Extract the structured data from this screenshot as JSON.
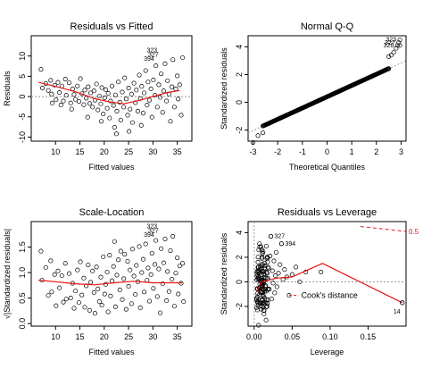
{
  "chart_data": [
    {
      "type": "scatter",
      "title": "Residuals vs Fitted",
      "xlabel": "Fitted values",
      "ylabel": "Residuals",
      "xlim": [
        5,
        38
      ],
      "ylim": [
        -11,
        15
      ],
      "xticks": [
        10,
        15,
        20,
        25,
        30,
        35
      ],
      "yticks": [
        -10,
        -5,
        0,
        5,
        10
      ],
      "smoother": {
        "x": [
          6.5,
          10,
          14,
          18,
          21,
          24,
          27,
          30,
          33,
          35.5
        ],
        "y": [
          3.5,
          2.5,
          1.2,
          -0.5,
          -1.3,
          -1.8,
          -1.0,
          0.0,
          1.0,
          1.5
        ]
      },
      "reference_line": 0,
      "labeled_points": [
        {
          "label": "323",
          "x": 31.6,
          "y": 11.4
        },
        {
          "label": "327",
          "x": 31.9,
          "y": 10.3
        },
        {
          "label": "394",
          "x": 31.0,
          "y": 9.3
        }
      ],
      "points": [
        [
          7,
          6.7
        ],
        [
          7.3,
          2.1
        ],
        [
          8,
          3.2
        ],
        [
          8.5,
          1.5
        ],
        [
          9,
          4.0
        ],
        [
          9.2,
          0.6
        ],
        [
          9.8,
          2.8
        ],
        [
          10.1,
          -0.8
        ],
        [
          10.5,
          3.5
        ],
        [
          10.8,
          1.0
        ],
        [
          11.3,
          2.6
        ],
        [
          11.6,
          -1.1
        ],
        [
          12,
          4.3
        ],
        [
          12.2,
          0.3
        ],
        [
          12.8,
          3.4
        ],
        [
          13.1,
          -1.6
        ],
        [
          13.5,
          1.9
        ],
        [
          13.8,
          0.5
        ],
        [
          14.1,
          -0.7
        ],
        [
          14.5,
          2.6
        ],
        [
          14.8,
          -1.2
        ],
        [
          15.1,
          4.4
        ],
        [
          15.4,
          0.7
        ],
        [
          15.8,
          -2.0
        ],
        [
          16,
          1.6
        ],
        [
          16.3,
          -0.4
        ],
        [
          16.7,
          2.4
        ],
        [
          17,
          -1.7
        ],
        [
          17.2,
          0.9
        ],
        [
          17.6,
          -2.6
        ],
        [
          17.9,
          1.4
        ],
        [
          18.1,
          -0.9
        ],
        [
          18.4,
          3.1
        ],
        [
          18.7,
          -3.3
        ],
        [
          19,
          0.1
        ],
        [
          19.3,
          -1.8
        ],
        [
          19.5,
          2.2
        ],
        [
          19.8,
          -4.3
        ],
        [
          20.1,
          -0.3
        ],
        [
          20.3,
          1.7
        ],
        [
          20.6,
          -2.9
        ],
        [
          20.8,
          0.8
        ],
        [
          21.1,
          -5.3
        ],
        [
          21.3,
          -1.1
        ],
        [
          21.6,
          2.6
        ],
        [
          21.9,
          -2.2
        ],
        [
          22.1,
          -7.6
        ],
        [
          22.3,
          0.4
        ],
        [
          22.6,
          -3.6
        ],
        [
          22.9,
          3.6
        ],
        [
          23.2,
          -1.4
        ],
        [
          23.4,
          -5.8
        ],
        [
          23.7,
          1.1
        ],
        [
          24,
          -2.6
        ],
        [
          24.2,
          4.6
        ],
        [
          24.5,
          -0.6
        ],
        [
          24.8,
          -4.6
        ],
        [
          25,
          2.1
        ],
        [
          25.3,
          -3.1
        ],
        [
          25.6,
          0.6
        ],
        [
          25.8,
          -6.4
        ],
        [
          26.1,
          3.3
        ],
        [
          26.4,
          -1.5
        ],
        [
          26.6,
          1.6
        ],
        [
          26.9,
          -3.6
        ],
        [
          27.2,
          5.3
        ],
        [
          27.4,
          -0.5
        ],
        [
          27.7,
          2.5
        ],
        [
          28,
          -4.1
        ],
        [
          28.2,
          0.9
        ],
        [
          28.5,
          6.4
        ],
        [
          28.8,
          -2.1
        ],
        [
          29,
          3.6
        ],
        [
          29.3,
          -0.9
        ],
        [
          29.6,
          1.9
        ],
        [
          29.8,
          -5.1
        ],
        [
          30.1,
          4.1
        ],
        [
          30.4,
          0.3
        ],
        [
          30.6,
          7.6
        ],
        [
          30.9,
          -2.6
        ],
        [
          31.2,
          2.9
        ],
        [
          31.5,
          -0.2
        ],
        [
          31.7,
          5.6
        ],
        [
          32,
          -3.9
        ],
        [
          32.2,
          1.4
        ],
        [
          32.5,
          8.1
        ],
        [
          32.8,
          -1.1
        ],
        [
          33,
          3.9
        ],
        [
          33.3,
          0.6
        ],
        [
          33.6,
          -6.1
        ],
        [
          33.9,
          2.4
        ],
        [
          34.1,
          9.1
        ],
        [
          34.4,
          -2.6
        ],
        [
          34.7,
          1.9
        ],
        [
          35,
          5.1
        ],
        [
          35.2,
          -0.6
        ],
        [
          35.5,
          2.9
        ],
        [
          35.8,
          -4.6
        ],
        [
          36.1,
          9.6
        ],
        [
          22.5,
          -9.2
        ],
        [
          25.1,
          -8.6
        ],
        [
          27.6,
          -7.1
        ],
        [
          19.4,
          -6.1
        ],
        [
          16.6,
          -5.1
        ],
        [
          13.3,
          -3.1
        ],
        [
          11.1,
          -2.1
        ],
        [
          9.3,
          -1.6
        ]
      ]
    },
    {
      "type": "scatter",
      "title": "Normal Q-Q",
      "xlabel": "Theoretical Quantiles",
      "ylabel": "Standardized residuals",
      "xlim": [
        -3.2,
        3.2
      ],
      "ylim": [
        -2.8,
        4.8
      ],
      "xticks": [
        -3,
        -2,
        -1,
        0,
        1,
        2,
        3
      ],
      "yticks": [
        -2,
        0,
        2,
        4
      ],
      "reference_line": {
        "x": [
          -3.2,
          3.2
        ],
        "y": [
          -2.2,
          3.0
        ]
      },
      "labeled_points": [
        {
          "label": "323",
          "x": 2.95,
          "y": 4.5
        },
        {
          "label": "327",
          "x": 2.9,
          "y": 4.3
        },
        {
          "label": "326",
          "x": 2.85,
          "y": 4.1
        }
      ],
      "qq_tail_points": [
        [
          -3.0,
          -2.9
        ],
        [
          -2.8,
          -2.4
        ],
        [
          -2.6,
          -2.2
        ],
        [
          2.5,
          3.3
        ],
        [
          2.6,
          3.4
        ],
        [
          2.7,
          3.6
        ],
        [
          2.8,
          3.9
        ],
        [
          2.95,
          4.1
        ]
      ]
    },
    {
      "type": "scatter",
      "title": "Scale-Location",
      "xlabel": "Fitted values",
      "ylabel": "√|Standardized residuals|",
      "xlim": [
        5,
        38
      ],
      "ylim": [
        -0.05,
        2.0
      ],
      "xticks": [
        10,
        15,
        20,
        25,
        30,
        35
      ],
      "yticks": [
        0.0,
        0.5,
        1.0,
        1.5
      ],
      "smoother": {
        "x": [
          6.5,
          10,
          14,
          18,
          22,
          26,
          30,
          34,
          36
        ],
        "y": [
          0.85,
          0.82,
          0.78,
          0.76,
          0.8,
          0.83,
          0.8,
          0.8,
          0.8
        ]
      },
      "labeled_points": [
        {
          "label": "323",
          "x": 31.6,
          "y": 1.9
        },
        {
          "label": "327",
          "x": 31.9,
          "y": 1.82
        },
        {
          "label": "394",
          "x": 31.0,
          "y": 1.74
        }
      ],
      "points": [
        [
          7,
          1.42
        ],
        [
          7.2,
          0.85
        ],
        [
          8,
          1.1
        ],
        [
          8.5,
          0.55
        ],
        [
          9,
          1.23
        ],
        [
          9.2,
          0.62
        ],
        [
          9.8,
          0.96
        ],
        [
          10.1,
          0.35
        ],
        [
          10.5,
          1.03
        ],
        [
          10.8,
          0.7
        ],
        [
          11.3,
          0.94
        ],
        [
          11.6,
          0.42
        ],
        [
          12,
          1.18
        ],
        [
          12.2,
          0.48
        ],
        [
          12.8,
          0.98
        ],
        [
          13.1,
          0.5
        ],
        [
          13.5,
          0.79
        ],
        [
          13.8,
          0.3
        ],
        [
          14.1,
          0.64
        ],
        [
          14.5,
          1.05
        ],
        [
          14.8,
          0.41
        ],
        [
          15.1,
          1.21
        ],
        [
          15.4,
          0.56
        ],
        [
          15.8,
          0.89
        ],
        [
          16,
          0.32
        ],
        [
          16.3,
          0.74
        ],
        [
          16.7,
          1.15
        ],
        [
          17,
          0.26
        ],
        [
          17.2,
          0.81
        ],
        [
          17.6,
          1.03
        ],
        [
          17.9,
          0.61
        ],
        [
          18.1,
          0.2
        ],
        [
          18.4,
          1.11
        ],
        [
          18.7,
          0.68
        ],
        [
          19,
          0.43
        ],
        [
          19.3,
          0.91
        ],
        [
          19.5,
          0.36
        ],
        [
          19.8,
          1.31
        ],
        [
          20.1,
          0.58
        ],
        [
          20.3,
          0.77
        ],
        [
          20.6,
          1.01
        ],
        [
          20.8,
          0.23
        ],
        [
          21.1,
          1.34
        ],
        [
          21.3,
          0.54
        ],
        [
          21.6,
          0.84
        ],
        [
          21.9,
          1.12
        ],
        [
          22.1,
          1.61
        ],
        [
          22.3,
          0.33
        ],
        [
          22.6,
          0.95
        ],
        [
          22.9,
          1.25
        ],
        [
          23.2,
          0.66
        ],
        [
          23.4,
          1.42
        ],
        [
          23.7,
          0.47
        ],
        [
          24,
          0.88
        ],
        [
          24.2,
          1.36
        ],
        [
          24.5,
          0.28
        ],
        [
          24.8,
          1.22
        ],
        [
          25,
          0.73
        ],
        [
          25.3,
          1.05
        ],
        [
          25.6,
          0.39
        ],
        [
          25.8,
          1.46
        ],
        [
          26.1,
          0.93
        ],
        [
          26.4,
          0.57
        ],
        [
          26.6,
          1.14
        ],
        [
          26.9,
          0.82
        ],
        [
          27.2,
          1.51
        ],
        [
          27.4,
          0.31
        ],
        [
          27.7,
          1.0
        ],
        [
          28,
          1.26
        ],
        [
          28.2,
          0.62
        ],
        [
          28.5,
          1.56
        ],
        [
          28.8,
          0.85
        ],
        [
          29,
          1.09
        ],
        [
          29.3,
          0.44
        ],
        [
          29.6,
          0.96
        ],
        [
          29.8,
          1.38
        ],
        [
          30.1,
          0.69
        ],
        [
          30.4,
          1.16
        ],
        [
          30.6,
          1.63
        ],
        [
          30.9,
          0.53
        ],
        [
          31.2,
          1.07
        ],
        [
          31.5,
          0.21
        ],
        [
          31.7,
          1.47
        ],
        [
          32,
          0.78
        ],
        [
          32.2,
          1.19
        ],
        [
          32.5,
          1.66
        ],
        [
          32.8,
          0.45
        ],
        [
          33,
          1.02
        ],
        [
          33.3,
          0.63
        ],
        [
          33.6,
          1.43
        ],
        [
          33.9,
          0.87
        ],
        [
          34.1,
          1.71
        ],
        [
          34.4,
          0.34
        ],
        [
          34.7,
          0.99
        ],
        [
          35,
          1.29
        ],
        [
          35.2,
          0.58
        ],
        [
          35.5,
          1.13
        ],
        [
          35.8,
          0.79
        ],
        [
          36.1,
          1.18
        ],
        [
          36.3,
          0.43
        ]
      ]
    },
    {
      "type": "scatter",
      "title": "Residuals vs Leverage",
      "xlabel": "Leverage",
      "ylabel": "Standardized residuals",
      "xlim": [
        -0.008,
        0.2
      ],
      "ylim": [
        -3.6,
        4.9
      ],
      "xticks": [
        0.0,
        0.05,
        0.1,
        0.15
      ],
      "yticks": [
        -2,
        0,
        2,
        4
      ],
      "smoother": {
        "x": [
          0.003,
          0.01,
          0.03,
          0.05,
          0.09,
          0.195
        ],
        "y": [
          -0.8,
          0.0,
          0.3,
          0.4,
          1.5,
          -1.7
        ]
      },
      "cooks_contour": {
        "x": [
          0.14,
          0.2
        ],
        "y": [
          4.5,
          4.1
        ]
      },
      "cooks_contour_level": "0.5",
      "legend_text": "Cook's distance",
      "labeled_points": [
        {
          "label": "327",
          "x": 0.022,
          "y": 3.7
        },
        {
          "label": "394",
          "x": 0.036,
          "y": 3.1
        },
        {
          "label": "14",
          "x": 0.195,
          "y": -1.7
        }
      ],
      "points": [
        [
          0.004,
          0.8
        ],
        [
          0.005,
          1.6
        ],
        [
          0.006,
          2.6
        ],
        [
          0.007,
          3.1
        ],
        [
          0.008,
          0.1
        ],
        [
          0.009,
          -0.8
        ],
        [
          0.01,
          1.9
        ],
        [
          0.011,
          2.3
        ],
        [
          0.012,
          -1.2
        ],
        [
          0.013,
          0.6
        ],
        [
          0.014,
          1.3
        ],
        [
          0.015,
          -0.3
        ],
        [
          0.016,
          2.9
        ],
        [
          0.017,
          -2.0
        ],
        [
          0.018,
          0.3
        ],
        [
          0.019,
          1.1
        ],
        [
          0.02,
          -0.6
        ],
        [
          0.021,
          2.1
        ],
        [
          0.022,
          3.7
        ],
        [
          0.023,
          -1.4
        ],
        [
          0.024,
          0.9
        ],
        [
          0.025,
          -0.1
        ],
        [
          0.026,
          1.7
        ],
        [
          0.027,
          -0.9
        ],
        [
          0.028,
          0.5
        ],
        [
          0.029,
          2.4
        ],
        [
          0.03,
          -0.4
        ],
        [
          0.032,
          0.7
        ],
        [
          0.034,
          1.4
        ],
        [
          0.036,
          3.1
        ],
        [
          0.038,
          0.2
        ],
        [
          0.04,
          1.0
        ],
        [
          0.043,
          0.4
        ],
        [
          0.046,
          -1.1
        ],
        [
          0.05,
          0.6
        ],
        [
          0.055,
          1.2
        ],
        [
          0.06,
          0.0
        ],
        [
          0.068,
          0.8
        ],
        [
          0.088,
          0.8
        ],
        [
          0.195,
          -1.7
        ]
      ]
    }
  ]
}
